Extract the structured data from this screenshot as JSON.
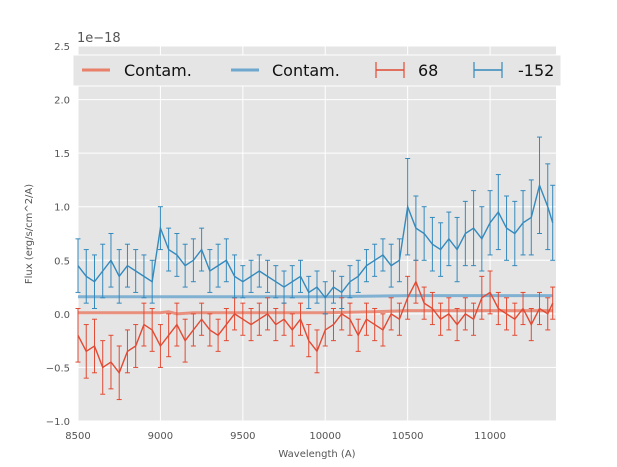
{
  "chart_data": {
    "type": "line",
    "xlabel": "Wavelength (A)",
    "ylabel": "Flux (erg/s/cm^2/A)",
    "y_offset_label": "1e−18",
    "xlim": [
      8500,
      11400
    ],
    "ylim": [
      -1.0,
      2.5
    ],
    "x_ticks": [
      8500,
      9000,
      9500,
      10000,
      10500,
      11000
    ],
    "x_tick_labels": [
      "8500",
      "9000",
      "9500",
      "10000",
      "10500",
      "11000"
    ],
    "y_ticks": [
      -1.0,
      -0.5,
      0.0,
      0.5,
      1.0,
      1.5,
      2.0,
      2.5
    ],
    "y_tick_labels": [
      "−1.0",
      "−0.5",
      "0.0",
      "0.5",
      "1.0",
      "1.5",
      "2.0",
      "2.5"
    ],
    "grid": true,
    "legend_position": "top",
    "legend": [
      {
        "label": "Contam.",
        "kind": "line",
        "color": "#E8806A"
      },
      {
        "label": "Contam.",
        "kind": "line",
        "color": "#6FA8CF"
      },
      {
        "label": "68",
        "kind": "errorbar",
        "color": "#E24A33"
      },
      {
        "label": "-152",
        "kind": "errorbar",
        "color": "#348ABD"
      }
    ],
    "contam_series": [
      {
        "name": "Contam.",
        "color": "#E8806A",
        "x": [
          8500,
          8800,
          9000,
          9050,
          9100,
          9200,
          9500,
          9800,
          10000,
          10300,
          10500,
          10700,
          11000,
          11200,
          11380
        ],
        "y": [
          0.01,
          0.01,
          0.01,
          0.02,
          0.0,
          0.01,
          0.01,
          0.01,
          0.01,
          0.02,
          0.03,
          0.03,
          0.03,
          0.03,
          0.03
        ]
      },
      {
        "name": "Contam.",
        "color": "#6FA8CF",
        "x": [
          8500,
          9000,
          9500,
          10000,
          10500,
          11000,
          11380
        ],
        "y": [
          0.16,
          0.16,
          0.16,
          0.16,
          0.17,
          0.17,
          0.17
        ]
      }
    ],
    "series": [
      {
        "name": "68",
        "color": "#E24A33",
        "x": [
          8500,
          8550,
          8600,
          8650,
          8700,
          8750,
          8800,
          8850,
          8900,
          8950,
          9000,
          9050,
          9100,
          9150,
          9200,
          9250,
          9300,
          9350,
          9400,
          9450,
          9500,
          9550,
          9600,
          9650,
          9700,
          9750,
          9800,
          9850,
          9900,
          9950,
          10000,
          10050,
          10100,
          10150,
          10200,
          10250,
          10300,
          10350,
          10400,
          10450,
          10500,
          10550,
          10600,
          10650,
          10700,
          10750,
          10800,
          10850,
          10900,
          10950,
          11000,
          11050,
          11100,
          11150,
          11200,
          11250,
          11300,
          11350,
          11380
        ],
        "y": [
          -0.2,
          -0.35,
          -0.3,
          -0.5,
          -0.45,
          -0.55,
          -0.35,
          -0.3,
          -0.1,
          -0.15,
          -0.3,
          -0.2,
          -0.1,
          -0.25,
          -0.15,
          -0.05,
          -0.15,
          -0.2,
          -0.1,
          0.0,
          -0.05,
          -0.1,
          -0.05,
          0.0,
          -0.1,
          -0.05,
          -0.15,
          -0.05,
          -0.25,
          -0.35,
          -0.15,
          -0.1,
          0.0,
          -0.05,
          -0.2,
          -0.05,
          -0.1,
          -0.15,
          0.0,
          -0.05,
          0.15,
          0.3,
          0.1,
          0.05,
          -0.05,
          0.0,
          -0.1,
          0.0,
          -0.05,
          0.15,
          0.2,
          0.05,
          0.0,
          -0.05,
          0.05,
          -0.1,
          0.05,
          0.0,
          0.1
        ],
        "err": [
          0.25,
          0.25,
          0.25,
          0.25,
          0.25,
          0.25,
          0.2,
          0.2,
          0.2,
          0.2,
          0.2,
          0.2,
          0.2,
          0.2,
          0.15,
          0.15,
          0.15,
          0.15,
          0.15,
          0.15,
          0.15,
          0.15,
          0.15,
          0.15,
          0.15,
          0.15,
          0.15,
          0.15,
          0.15,
          0.2,
          0.15,
          0.15,
          0.15,
          0.15,
          0.15,
          0.15,
          0.15,
          0.15,
          0.15,
          0.15,
          0.2,
          0.2,
          0.15,
          0.15,
          0.15,
          0.15,
          0.15,
          0.15,
          0.15,
          0.2,
          0.2,
          0.15,
          0.15,
          0.15,
          0.15,
          0.15,
          0.15,
          0.15,
          0.15
        ]
      },
      {
        "name": "-152",
        "color": "#348ABD",
        "x": [
          8500,
          8550,
          8600,
          8650,
          8700,
          8750,
          8800,
          8850,
          8900,
          8950,
          9000,
          9050,
          9100,
          9150,
          9200,
          9250,
          9300,
          9350,
          9400,
          9450,
          9500,
          9550,
          9600,
          9650,
          9700,
          9750,
          9800,
          9850,
          9900,
          9950,
          10000,
          10050,
          10100,
          10150,
          10200,
          10250,
          10300,
          10350,
          10400,
          10450,
          10500,
          10550,
          10600,
          10650,
          10700,
          10750,
          10800,
          10850,
          10900,
          10950,
          11000,
          11050,
          11100,
          11150,
          11200,
          11250,
          11300,
          11350,
          11380
        ],
        "y": [
          0.45,
          0.35,
          0.3,
          0.4,
          0.5,
          0.35,
          0.45,
          0.4,
          0.35,
          0.3,
          0.8,
          0.6,
          0.55,
          0.45,
          0.5,
          0.6,
          0.4,
          0.45,
          0.5,
          0.35,
          0.3,
          0.35,
          0.4,
          0.35,
          0.3,
          0.25,
          0.3,
          0.35,
          0.2,
          0.25,
          0.15,
          0.25,
          0.2,
          0.3,
          0.35,
          0.45,
          0.5,
          0.55,
          0.45,
          0.5,
          1.0,
          0.8,
          0.75,
          0.65,
          0.6,
          0.7,
          0.6,
          0.75,
          0.8,
          0.7,
          0.85,
          0.95,
          0.8,
          0.75,
          0.85,
          0.9,
          1.2,
          1.0,
          0.85
        ],
        "err": [
          0.25,
          0.25,
          0.25,
          0.25,
          0.25,
          0.25,
          0.2,
          0.2,
          0.2,
          0.2,
          0.2,
          0.2,
          0.2,
          0.2,
          0.2,
          0.2,
          0.2,
          0.2,
          0.2,
          0.2,
          0.15,
          0.15,
          0.15,
          0.15,
          0.15,
          0.15,
          0.15,
          0.15,
          0.15,
          0.15,
          0.15,
          0.15,
          0.15,
          0.15,
          0.15,
          0.15,
          0.15,
          0.15,
          0.2,
          0.2,
          0.45,
          0.3,
          0.25,
          0.25,
          0.25,
          0.25,
          0.3,
          0.3,
          0.35,
          0.3,
          0.3,
          0.35,
          0.3,
          0.3,
          0.3,
          0.35,
          0.45,
          0.4,
          0.35
        ]
      }
    ]
  }
}
